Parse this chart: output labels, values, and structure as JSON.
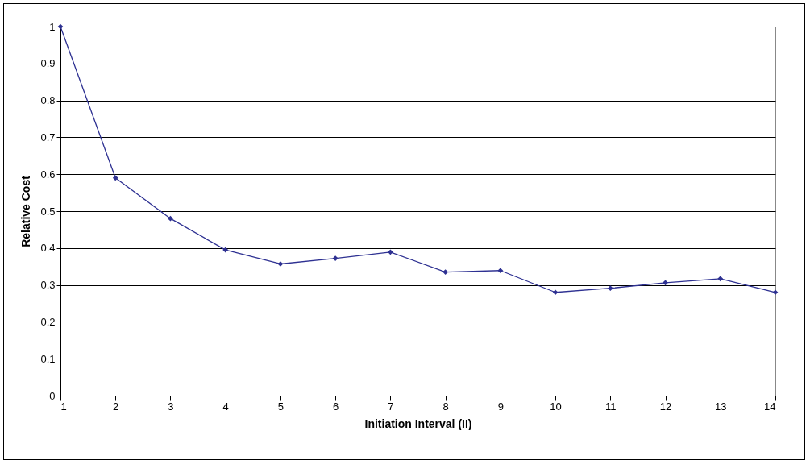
{
  "chart_data": {
    "type": "line",
    "xlabel": "Initiation Interval (II)",
    "ylabel": "Relative Cost",
    "x": [
      1,
      2,
      3,
      4,
      5,
      6,
      7,
      8,
      9,
      10,
      11,
      12,
      13,
      14
    ],
    "series": [
      {
        "color": "#2e3192",
        "values": [
          1.0,
          0.59,
          0.48,
          0.395,
          0.357,
          0.372,
          0.389,
          0.335,
          0.339,
          0.28,
          0.291,
          0.306,
          0.317,
          0.28
        ]
      }
    ],
    "xlim": [
      1,
      14
    ],
    "xticks": [
      1,
      2,
      3,
      4,
      5,
      6,
      7,
      8,
      9,
      10,
      11,
      12,
      13,
      14
    ],
    "ylim": [
      0,
      1
    ],
    "yticks": [
      0,
      0.1,
      0.2,
      0.3,
      0.4,
      0.5,
      0.6,
      0.7,
      0.8,
      0.9,
      1
    ],
    "grid": "y",
    "marker": "diamond",
    "line_style": "solid",
    "legend": false
  }
}
